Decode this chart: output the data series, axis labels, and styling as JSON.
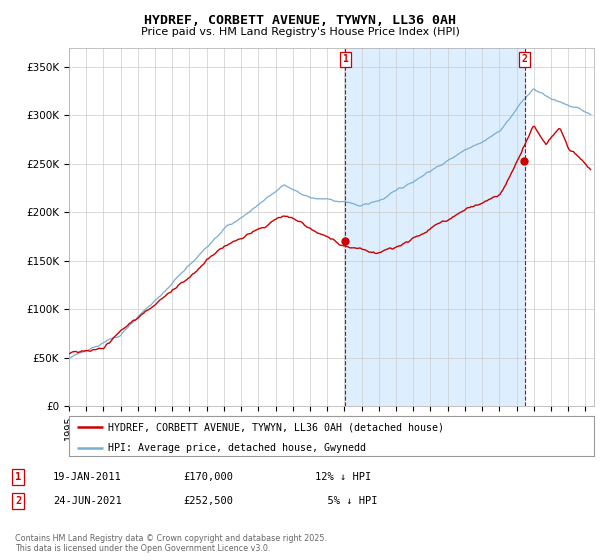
{
  "title": "HYDREF, CORBETT AVENUE, TYWYN, LL36 0AH",
  "subtitle": "Price paid vs. HM Land Registry's House Price Index (HPI)",
  "ylabel_ticks": [
    "£0",
    "£50K",
    "£100K",
    "£150K",
    "£200K",
    "£250K",
    "£300K",
    "£350K"
  ],
  "ytick_values": [
    0,
    50000,
    100000,
    150000,
    200000,
    250000,
    300000,
    350000
  ],
  "ylim": [
    0,
    370000
  ],
  "xlim_start": 1995.0,
  "xlim_end": 2025.5,
  "sale1_x": 2011.05,
  "sale1_y": 170000,
  "sale2_x": 2021.48,
  "sale2_y": 252500,
  "red_color": "#cc0000",
  "blue_color": "#7aadd4",
  "shade_color": "#ddeeff",
  "annotation_color": "#cc0000",
  "legend_label_red": "HYDREF, CORBETT AVENUE, TYWYN, LL36 0AH (detached house)",
  "legend_label_blue": "HPI: Average price, detached house, Gwynedd",
  "footer": "Contains HM Land Registry data © Crown copyright and database right 2025.\nThis data is licensed under the Open Government Licence v3.0.",
  "background_color": "#ffffff",
  "grid_color": "#cccccc"
}
